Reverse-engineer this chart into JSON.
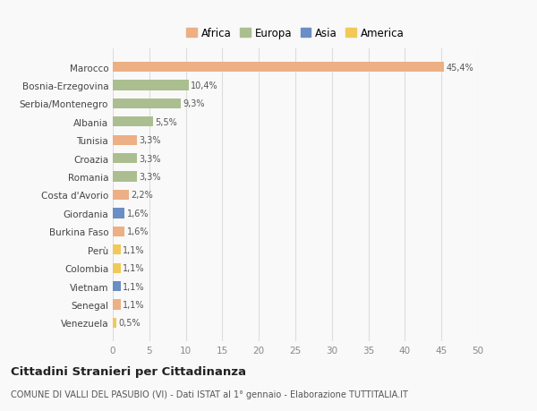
{
  "categories": [
    "Marocco",
    "Bosnia-Erzegovina",
    "Serbia/Montenegro",
    "Albania",
    "Tunisia",
    "Croazia",
    "Romania",
    "Costa d'Avorio",
    "Giordania",
    "Burkina Faso",
    "Perù",
    "Colombia",
    "Vietnam",
    "Senegal",
    "Venezuela"
  ],
  "values": [
    45.4,
    10.4,
    9.3,
    5.5,
    3.3,
    3.3,
    3.3,
    2.2,
    1.6,
    1.6,
    1.1,
    1.1,
    1.1,
    1.1,
    0.5
  ],
  "labels": [
    "45,4%",
    "10,4%",
    "9,3%",
    "5,5%",
    "3,3%",
    "3,3%",
    "3,3%",
    "2,2%",
    "1,6%",
    "1,6%",
    "1,1%",
    "1,1%",
    "1,1%",
    "1,1%",
    "0,5%"
  ],
  "continents": [
    "Africa",
    "Europa",
    "Europa",
    "Europa",
    "Africa",
    "Europa",
    "Europa",
    "Africa",
    "Asia",
    "Africa",
    "America",
    "America",
    "Asia",
    "Africa",
    "America"
  ],
  "colors": {
    "Africa": "#EDAF84",
    "Europa": "#ABBE90",
    "Asia": "#6B8EC4",
    "America": "#F0C959"
  },
  "legend_order": [
    "Africa",
    "Europa",
    "Asia",
    "America"
  ],
  "xlim": [
    0,
    50
  ],
  "xticks": [
    0,
    5,
    10,
    15,
    20,
    25,
    30,
    35,
    40,
    45,
    50
  ],
  "title": "Cittadini Stranieri per Cittadinanza",
  "subtitle": "COMUNE DI VALLI DEL PASUBIO (VI) - Dati ISTAT al 1° gennaio - Elaborazione TUTTITALIA.IT",
  "background_color": "#f9f9f9",
  "grid_color": "#dddddd"
}
